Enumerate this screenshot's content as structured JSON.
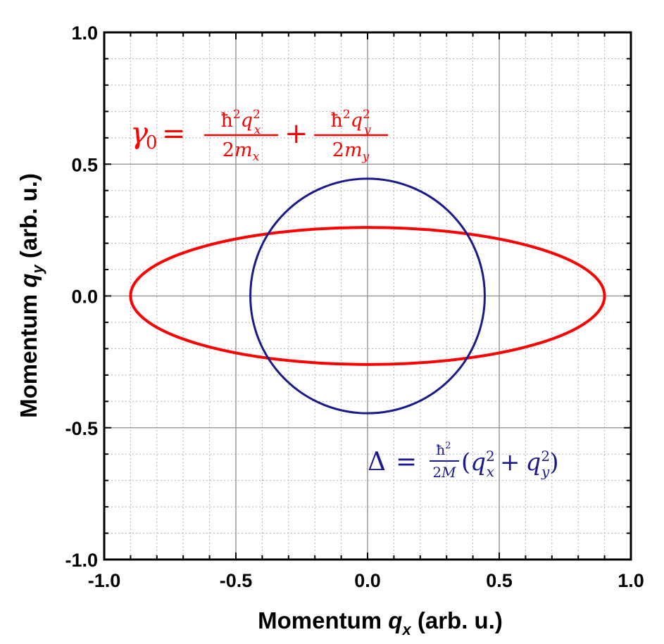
{
  "chart_data": {
    "type": "line",
    "title": "",
    "xlabel": {
      "prefix": "Momentum ",
      "symbol": "q",
      "sub": "x",
      "suffix": " (arb. u.)"
    },
    "ylabel": {
      "prefix": "Momentum ",
      "symbol": "q",
      "sub": "y",
      "suffix": " (arb. u.)"
    },
    "xlim": [
      -1.0,
      1.0
    ],
    "ylim": [
      -1.0,
      1.0
    ],
    "x_ticks": [
      "-1.0",
      "-0.5",
      "0.0",
      "0.5",
      "1.0"
    ],
    "y_ticks": [
      "-1.0",
      "-0.5",
      "0.0",
      "0.5",
      "1.0"
    ],
    "grid": {
      "major": true,
      "minor": true,
      "major_step": 0.5,
      "minor_step": 0.1
    },
    "series": [
      {
        "color": "#ff0000",
        "shape": "ellipse",
        "center": [
          0.0,
          0.0
        ],
        "semi_axis_x": 0.9,
        "semi_axis_y": 0.26
      },
      {
        "color": "#1a1a8c",
        "shape": "circle",
        "center": [
          0.0,
          0.0
        ],
        "radius": 0.445
      }
    ],
    "annotations": [
      {
        "id": "gamma",
        "color": "#ff0000",
        "text": "γ0 = ħ2qx2/2mx + ħ2qy2/2my"
      },
      {
        "id": "delta",
        "color": "#1a1a8c",
        "text": "Δ = ħ2/2M(qx2 + qy2)"
      }
    ]
  }
}
